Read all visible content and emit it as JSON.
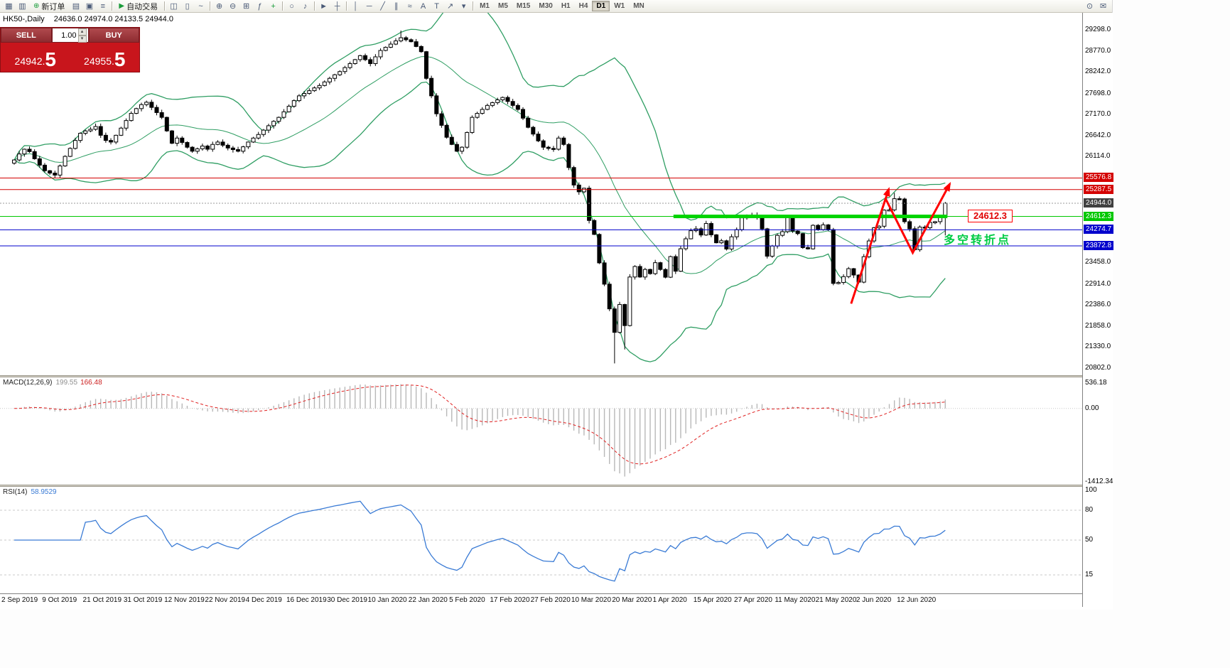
{
  "toolbar": {
    "items": [
      {
        "t": "icon",
        "name": "chart-window-icon",
        "g": "▦"
      },
      {
        "t": "icon",
        "name": "profiles-icon",
        "g": "▥"
      },
      {
        "t": "btn",
        "name": "new-order-button",
        "g": "⊕",
        "gc": "#1a9c3a",
        "label": "新订单"
      },
      {
        "t": "icon",
        "name": "market-watch-icon",
        "g": "▤"
      },
      {
        "t": "icon",
        "name": "data-window-icon",
        "g": "▣"
      },
      {
        "t": "icon",
        "name": "navigator-icon",
        "g": "≡"
      },
      {
        "t": "sep"
      },
      {
        "t": "btn",
        "name": "auto-trading-button",
        "g": "▶",
        "gc": "#1a9c3a",
        "label": "自动交易"
      },
      {
        "t": "sep"
      },
      {
        "t": "icon",
        "name": "bar-chart-icon",
        "g": "◫"
      },
      {
        "t": "icon",
        "name": "candlestick-chart-icon",
        "g": "▯"
      },
      {
        "t": "icon",
        "name": "line-chart-icon",
        "g": "~"
      },
      {
        "t": "sep"
      },
      {
        "t": "icon",
        "name": "zoom-in-icon",
        "g": "⊕"
      },
      {
        "t": "icon",
        "name": "zoom-out-icon",
        "g": "⊖"
      },
      {
        "t": "icon",
        "name": "tile-windows-icon",
        "g": "⊞"
      },
      {
        "t": "icon",
        "name": "indicators-list-icon",
        "g": "ƒ"
      },
      {
        "t": "icon",
        "name": "add-indicator-icon",
        "g": "+",
        "gc": "#1a9c3a"
      },
      {
        "t": "sep"
      },
      {
        "t": "icon",
        "name": "period-settings-icon",
        "g": "○"
      },
      {
        "t": "icon",
        "name": "alerts-icon",
        "g": "♪"
      },
      {
        "t": "sep"
      },
      {
        "t": "icon",
        "name": "cursor-icon",
        "g": "►"
      },
      {
        "t": "icon",
        "name": "crosshair-icon",
        "g": "┼"
      },
      {
        "t": "sep"
      },
      {
        "t": "icon",
        "name": "vertical-line-icon",
        "g": "│"
      },
      {
        "t": "icon",
        "name": "horizontal-line-icon",
        "g": "─"
      },
      {
        "t": "icon",
        "name": "trendline-icon",
        "g": "╱"
      },
      {
        "t": "icon",
        "name": "equidistant-channel-icon",
        "g": "∥"
      },
      {
        "t": "icon",
        "name": "fibonacci-icon",
        "g": "≈"
      },
      {
        "t": "icon",
        "name": "text-icon",
        "g": "A"
      },
      {
        "t": "icon",
        "name": "text-label-icon",
        "g": "T"
      },
      {
        "t": "icon",
        "name": "arrow-objects-icon",
        "g": "↗"
      },
      {
        "t": "icon",
        "name": "objects-dropdown-icon",
        "g": "▾"
      },
      {
        "t": "sep"
      }
    ],
    "timeframes": [
      "M1",
      "M5",
      "M15",
      "M30",
      "H1",
      "H4",
      "D1",
      "W1",
      "MN"
    ],
    "active_timeframe": "D1",
    "right_icons": [
      {
        "name": "search-icon",
        "g": "⊙"
      },
      {
        "name": "mail-icon",
        "g": "✉"
      }
    ]
  },
  "chart_header": {
    "symbol": "HK50-,Daily",
    "ohlc": "24636.0 24974.0 24133.5 24944.0"
  },
  "trade_panel": {
    "sell_label": "SELL",
    "buy_label": "BUY",
    "volume": "1.00",
    "sell_price_small": "24942.",
    "sell_price_big": "5",
    "buy_price_small": "24955.",
    "buy_price_big": "5"
  },
  "annotations": {
    "callout_label": "24612.3",
    "turning_point_label": "多空转折点"
  },
  "chart_data": {
    "type": "candlestick",
    "symbol": "HK50",
    "period": "Daily",
    "last_ohlc": {
      "open": 24636.0,
      "high": 24974.0,
      "low": 24133.5,
      "close": 24944.0
    },
    "y_top_price": 29298.0,
    "y_bottom_price": 20802.0,
    "y_axis_ticks": [
      29298.0,
      28770.0,
      28242.0,
      27698.0,
      27170.0,
      26642.0,
      26114.0,
      23458.0,
      22914.0,
      22386.0,
      21858.0,
      21330.0,
      20802.0
    ],
    "levels": [
      {
        "price": 25576.8,
        "label": "25576.8",
        "color": "#d40000",
        "role": "resistance"
      },
      {
        "price": 25287.5,
        "label": "25287.5",
        "color": "#d40000",
        "role": "resistance"
      },
      {
        "price": 24944.0,
        "label": "24944.0",
        "color": "#404040",
        "role": "bid"
      },
      {
        "price": 24612.3,
        "label": "24612.3",
        "color": "#00c800",
        "role": "pivot"
      },
      {
        "price": 24274.7,
        "label": "24274.7",
        "color": "#0000cc",
        "role": "support"
      },
      {
        "price": 23872.8,
        "label": "23872.8",
        "color": "#0000cc",
        "role": "support"
      }
    ],
    "support_zone": {
      "price": 24612.3,
      "from_index": 130,
      "to_index": 183,
      "color": "#00d400"
    },
    "zigzag": {
      "color": "#ff0000",
      "segments": [
        [
          [
            164.5,
            22420
          ],
          [
            171.9,
            25300
          ]
        ],
        [
          [
            171.3,
            25050
          ],
          [
            176.6,
            23700
          ],
          [
            183.9,
            25430
          ]
        ]
      ]
    },
    "candles": {
      "up_color": "#ffffff",
      "down_color": "#000000",
      "outline_color": "#000000",
      "closes": [
        26030,
        26180,
        26300,
        26240,
        26060,
        25900,
        25760,
        25700,
        25650,
        25880,
        26120,
        26320,
        26520,
        26700,
        26760,
        26800,
        26870,
        26650,
        26520,
        26480,
        26650,
        26830,
        27020,
        27200,
        27320,
        27420,
        27480,
        27350,
        27220,
        27100,
        26760,
        26450,
        26580,
        26470,
        26350,
        26250,
        26310,
        26380,
        26300,
        26420,
        26480,
        26400,
        26330,
        26290,
        26250,
        26360,
        26480,
        26580,
        26670,
        26780,
        26890,
        27000,
        27100,
        27240,
        27380,
        27520,
        27640,
        27700,
        27770,
        27840,
        27900,
        27990,
        28080,
        28170,
        28250,
        28350,
        28450,
        28550,
        28650,
        28550,
        28450,
        28620,
        28780,
        28860,
        28940,
        29020,
        29100,
        29050,
        29000,
        28880,
        28750,
        28080,
        27640,
        27190,
        26900,
        26600,
        26420,
        26250,
        26350,
        26720,
        27100,
        27200,
        27300,
        27400,
        27470,
        27540,
        27600,
        27500,
        27400,
        27300,
        27080,
        26850,
        26680,
        26510,
        26350,
        26320,
        26300,
        26580,
        26420,
        25840,
        25400,
        25230,
        25320,
        24510,
        24160,
        23445,
        22910,
        22290,
        21700,
        22400,
        21870,
        23090,
        23355,
        23090,
        23280,
        23175,
        23450,
        23280,
        23085,
        23603,
        23236,
        23800,
        24050,
        24253,
        24300,
        24145,
        24435,
        24150,
        23950,
        24000,
        23793,
        24100,
        24280,
        24575,
        24643,
        24644,
        24600,
        24300,
        23613,
        23868,
        24137,
        24230,
        24602,
        24245,
        24180,
        23829,
        23797,
        24388,
        24280,
        24400,
        24280,
        22930,
        22952,
        23100,
        23300,
        23140,
        22961,
        23600,
        23996,
        24326,
        24366,
        24770,
        24776,
        25057,
        25049,
        24480,
        24301,
        23776,
        24344,
        24327,
        24464,
        24480,
        24636,
        24944
      ],
      "special_highs": {
        "76": 29280,
        "173": 25205
      },
      "special_lows": {
        "118": 20920,
        "120": 21270
      }
    },
    "bollinger": {
      "period": 20,
      "deviation": 2,
      "color": "#2f9e63"
    },
    "dates": [
      [
        "2 Sep 2019",
        0
      ],
      [
        "9 Oct 2019",
        8
      ],
      [
        "21 Oct 2019",
        16
      ],
      [
        "31 Oct 2019",
        24
      ],
      [
        "12 Nov 2019",
        32
      ],
      [
        "22 Nov 2019",
        40
      ],
      [
        "4 Dec 2019",
        48
      ],
      [
        "16 Dec 2019",
        56
      ],
      [
        "30 Dec 2019",
        64
      ],
      [
        "10 Jan 2020",
        72
      ],
      [
        "22 Jan 2020",
        80
      ],
      [
        "5 Feb 2020",
        88
      ],
      [
        "17 Feb 2020",
        96
      ],
      [
        "27 Feb 2020",
        104
      ],
      [
        "10 Mar 2020",
        112
      ],
      [
        "20 Mar 2020",
        120
      ],
      [
        "1 Apr 2020",
        128
      ],
      [
        "15 Apr 2020",
        136
      ],
      [
        "27 Apr 2020",
        144
      ],
      [
        "11 May 2020",
        152
      ],
      [
        "21 May 2020",
        160
      ],
      [
        "2 Jun 2020",
        168
      ],
      [
        "12 Jun 2020",
        176
      ]
    ],
    "macd": {
      "title": "MACD(12,26,9)",
      "value_main": "199.55",
      "value_signal": "166.48",
      "fast": 12,
      "slow": 26,
      "signal": 9,
      "axis_ticks": [
        "536.18",
        "0.00",
        "-1412.34"
      ],
      "axis_max": 536.18,
      "axis_min": -1412.34,
      "hist_color": "#b8b8b8",
      "signal_color": "#e02020"
    },
    "rsi": {
      "title": "RSI(14)",
      "current_value": "58.9529",
      "period": 14,
      "axis_ticks": [
        100,
        80,
        50,
        15
      ],
      "levels": [
        80,
        50,
        15
      ],
      "color": "#3a7bd5"
    }
  }
}
